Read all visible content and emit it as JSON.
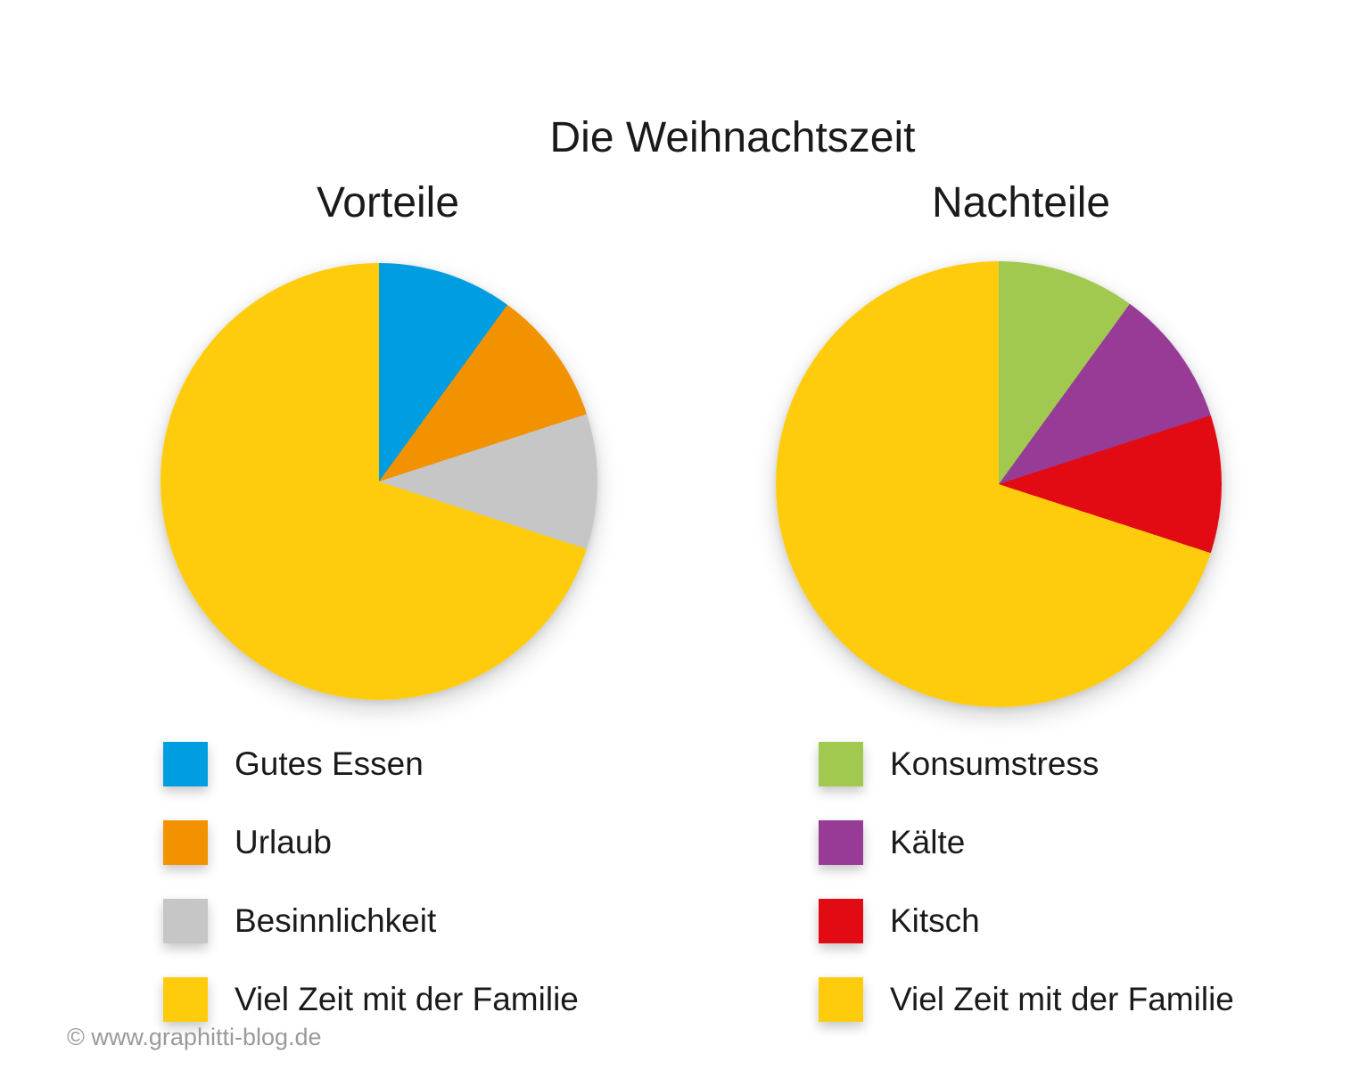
{
  "page": {
    "title": "Die Weihnachtszeit",
    "copyright": "© www.graphitti-blog.de",
    "background_color": "#FFFFFF",
    "text_color": "#1A1A1A",
    "copyright_color": "#9A9A9A"
  },
  "chart_data": [
    {
      "type": "pie",
      "title": "Vorteile",
      "start_angle_deg": 0,
      "direction": "clockwise",
      "legend_position": "below",
      "slices": [
        {
          "label": "Gutes Essen",
          "value": 10,
          "color": "#009EE0"
        },
        {
          "label": "Urlaub",
          "value": 10,
          "color": "#F39200"
        },
        {
          "label": "Besinnlichkeit",
          "value": 10,
          "color": "#C6C6C6"
        },
        {
          "label": "Viel Zeit mit der Familie",
          "value": 70,
          "color": "#FFCC0D"
        }
      ]
    },
    {
      "type": "pie",
      "title": "Nachteile",
      "start_angle_deg": 0,
      "direction": "clockwise",
      "legend_position": "below",
      "slices": [
        {
          "label": "Konsumstress",
          "value": 10,
          "color": "#A2C94F"
        },
        {
          "label": "Kälte",
          "value": 10,
          "color": "#973B97"
        },
        {
          "label": "Kitsch",
          "value": 10,
          "color": "#E30B13"
        },
        {
          "label": "Viel Zeit mit der Familie",
          "value": 70,
          "color": "#FFCC0D"
        }
      ]
    }
  ]
}
